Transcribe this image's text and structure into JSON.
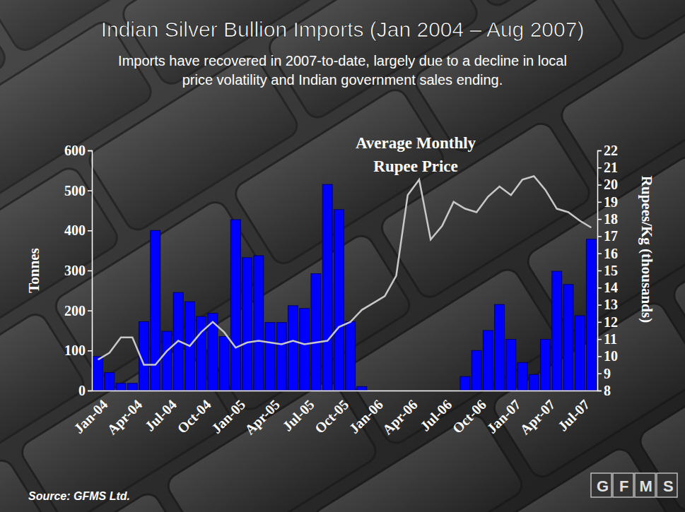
{
  "chart_data": {
    "type": "bar",
    "title": "Indian Silver Bullion Imports (Jan 2004 – Aug 2007)",
    "subtitle": [
      "Imports have recovered in 2007-to-date, largely due to a decline in local",
      "price volatility and Indian government sales ending."
    ],
    "annotations": [
      "Average Monthly",
      "Rupee Price"
    ],
    "source": "Source: GFMS Ltd.",
    "logo": "GFMS",
    "y_label": "Tonnes",
    "y2_label": "Rupees/Kg (thousands)",
    "categories": [
      "Jan-04",
      null,
      null,
      "Apr-04",
      null,
      null,
      "Jul-04",
      null,
      null,
      "Oct-04",
      null,
      null,
      "Jan-05",
      null,
      null,
      "Apr-05",
      null,
      null,
      "Jul-05",
      null,
      null,
      "Oct-05",
      null,
      null,
      "Jan-06",
      null,
      null,
      "Apr-06",
      null,
      null,
      "Jul-06",
      null,
      null,
      "Oct-06",
      null,
      null,
      "Jan-07",
      null,
      null,
      "Apr-07",
      null,
      null,
      "Jul-07",
      null
    ],
    "series": [
      {
        "type": "bar",
        "color": "#0000ff",
        "values": [
          85,
          45,
          18,
          18,
          172,
          400,
          148,
          245,
          222,
          185,
          193,
          135,
          427,
          332,
          337,
          170,
          170,
          212,
          205,
          292,
          515,
          452,
          172,
          10,
          0,
          0,
          0,
          0,
          0,
          0,
          0,
          0,
          35,
          100,
          150,
          215,
          128,
          70,
          40,
          128,
          298,
          265,
          187,
          378
        ]
      },
      {
        "type": "line",
        "axis": "y2",
        "color": "#c8c8c8",
        "values": [
          9.8,
          10.2,
          11.1,
          11.1,
          9.5,
          9.5,
          10.3,
          10.9,
          10.6,
          11.4,
          12.0,
          11.4,
          10.5,
          10.8,
          10.9,
          10.8,
          10.7,
          10.9,
          10.7,
          10.8,
          10.9,
          11.7,
          12.0,
          12.7,
          13.1,
          13.5,
          14.7,
          19.4,
          20.3,
          16.8,
          17.6,
          19.0,
          18.6,
          18.4,
          19.3,
          19.9,
          19.4,
          20.3,
          20.5,
          19.7,
          18.6,
          18.4,
          17.9,
          17.5
        ]
      }
    ],
    "ylim": [
      0,
      600
    ],
    "yticks": [
      0,
      100,
      200,
      300,
      400,
      500,
      600
    ],
    "y2lim": [
      8,
      22
    ],
    "y2ticks": [
      8,
      9,
      10,
      11,
      12,
      13,
      14,
      15,
      16,
      17,
      18,
      19,
      20,
      21,
      22
    ],
    "grid": false
  }
}
